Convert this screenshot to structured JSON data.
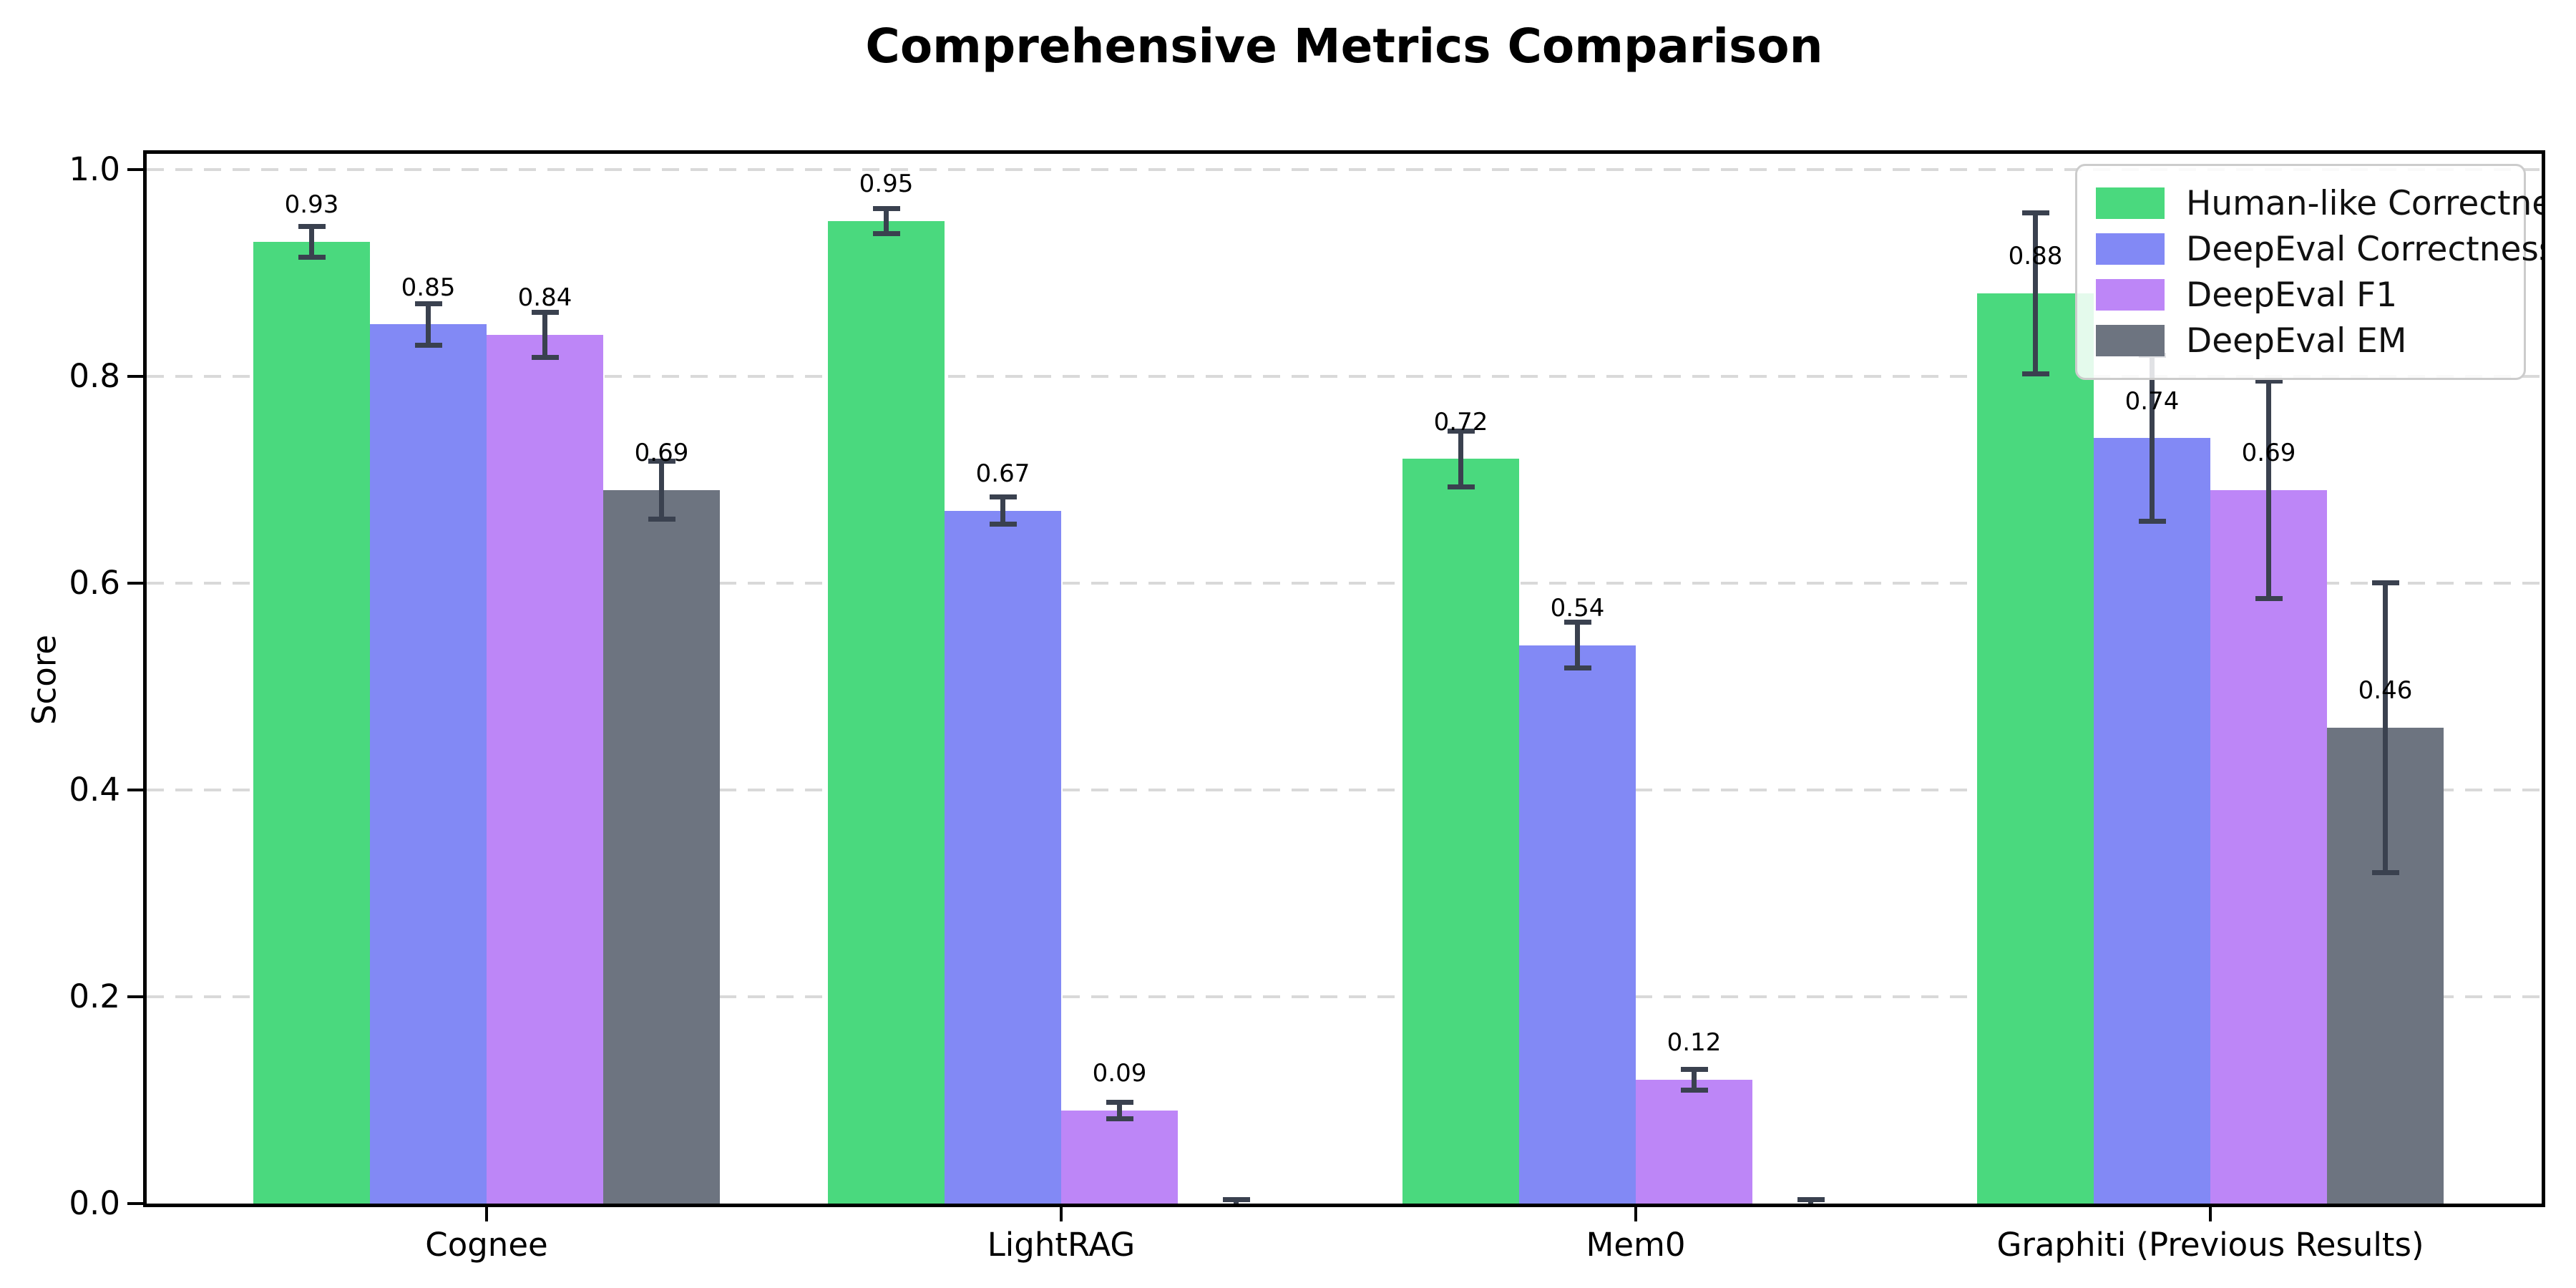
{
  "title": "Comprehensive Metrics Comparison",
  "chart_data": {
    "type": "bar",
    "title": "Comprehensive Metrics Comparison",
    "xlabel": "",
    "ylabel": "Score",
    "categories": [
      "Cognee",
      "LightRAG",
      "Mem0",
      "Graphiti (Previous Results)"
    ],
    "series": [
      {
        "name": "Human-like Correctness",
        "color": "#4ad97e",
        "values": [
          0.93,
          0.95,
          0.72,
          0.88
        ],
        "errors": [
          0.015,
          0.012,
          0.027,
          0.078
        ]
      },
      {
        "name": "DeepEval Correctness",
        "color": "#8289f5",
        "values": [
          0.85,
          0.67,
          0.54,
          0.74
        ],
        "errors": [
          0.02,
          0.013,
          0.022,
          0.08
        ]
      },
      {
        "name": "DeepEval F1",
        "color": "#bd86f7",
        "values": [
          0.84,
          0.09,
          0.12,
          0.69
        ],
        "errors": [
          0.022,
          0.008,
          0.01,
          0.105
        ]
      },
      {
        "name": "DeepEval EM",
        "color": "#6d7480",
        "values": [
          0.69,
          0.0,
          0.0,
          0.46
        ],
        "errors": [
          0.028,
          0.004,
          0.004,
          0.14
        ]
      }
    ],
    "ylim": [
      0,
      1.015
    ],
    "yticks": [
      0.0,
      0.2,
      0.4,
      0.6,
      0.8,
      1.0
    ],
    "grid": "horizontal-dashed",
    "gridline_color": "#d9d9d9",
    "error_bar_color": "#3a414f",
    "legend_position": "upper-right",
    "bar_value_labels_shown_for_nonzero_only": true
  }
}
